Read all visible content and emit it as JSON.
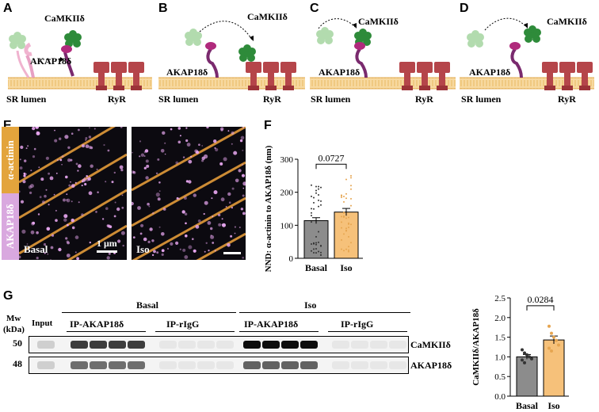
{
  "panels": {
    "a": "A",
    "b": "B",
    "c": "C",
    "d": "D",
    "e": "E",
    "f": "F",
    "g": "G"
  },
  "schematic": {
    "camk_label": "CaMKIIδ",
    "akap_label": "AKAP18δ",
    "lumen_label": "SR lumen",
    "ryr_label": "RyR"
  },
  "microscopy": {
    "alpha_actinin": "α-actinin",
    "akap": "AKAP18δ",
    "basal": "Basal",
    "iso": "Iso",
    "scale": "1 μm"
  },
  "chart_data": [
    {
      "type": "bar",
      "panel": "F",
      "categories": [
        "Basal",
        "Iso"
      ],
      "values": [
        114,
        140
      ],
      "errors": [
        9,
        11
      ],
      "ylabel": "NND: α-actinin to AKAP18δ (nm)",
      "ylim": [
        0,
        300
      ],
      "yticks": [
        "0",
        "100",
        "200",
        "300"
      ],
      "pvalue": "0.0727",
      "colors": [
        "#8c8c8c",
        "#f6c17a"
      ]
    },
    {
      "type": "bar",
      "panel": "G",
      "categories": [
        "Basal",
        "Iso"
      ],
      "values": [
        1.0,
        1.43
      ],
      "errors": [
        0.06,
        0.1
      ],
      "ylabel": "CaMKIIδ/AKAP18δ",
      "ylim": [
        0,
        2.5
      ],
      "yticks": [
        "0.0",
        "0.5",
        "1.0",
        "1.5",
        "2.0",
        "2.5"
      ],
      "pvalue": "0.0284",
      "colors": [
        "#8c8c8c",
        "#f6c17a"
      ],
      "points_basal": [
        1.18,
        1.1,
        1.05,
        1.0,
        0.95,
        0.92,
        0.85
      ],
      "points_iso": [
        1.78,
        1.6,
        1.5,
        1.42,
        1.3,
        1.22,
        1.15
      ]
    }
  ],
  "blot": {
    "mw": "Mw",
    "kda": "(kDa)",
    "input": "Input",
    "basal": "Basal",
    "iso": "Iso",
    "ip_akap": "IP-AKAP18δ",
    "ip_rigg": "IP-rIgG",
    "mw50": "50",
    "mw48": "48",
    "camk": "CaMKIIδ",
    "akap": "AKAP18δ"
  }
}
